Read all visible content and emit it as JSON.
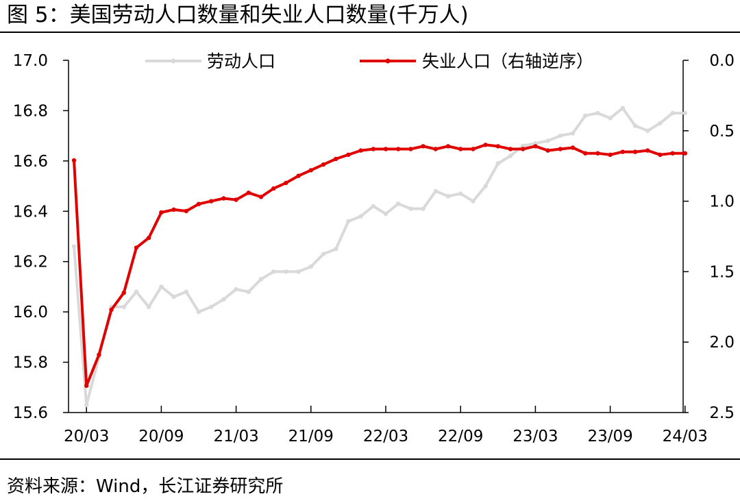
{
  "title": "图 5：美国劳动人口数量和失业人口数量(千万人)",
  "source": "资料来源：Wind，长江证券研究所",
  "colors": {
    "labor": "#d9d9d9",
    "unemployed": "#e00000",
    "rule": "#000000"
  },
  "chart_data": {
    "type": "line",
    "legend_position": "top",
    "grid": false,
    "x": [
      "20/02",
      "20/03",
      "20/04",
      "20/05",
      "20/06",
      "20/07",
      "20/08",
      "20/09",
      "20/10",
      "20/11",
      "20/12",
      "21/01",
      "21/02",
      "21/03",
      "21/04",
      "21/05",
      "21/06",
      "21/07",
      "21/08",
      "21/09",
      "21/10",
      "21/11",
      "21/12",
      "22/01",
      "22/02",
      "22/03",
      "22/04",
      "22/05",
      "22/06",
      "22/07",
      "22/08",
      "22/09",
      "22/10",
      "22/11",
      "22/12",
      "23/01",
      "23/02",
      "23/03",
      "23/04",
      "23/05",
      "23/06",
      "23/07",
      "23/08",
      "23/09",
      "23/10",
      "23/11",
      "23/12",
      "24/01",
      "24/02",
      "24/03"
    ],
    "x_tick_labels": [
      "20/03",
      "20/09",
      "21/03",
      "21/09",
      "22/03",
      "22/09",
      "23/03",
      "23/09",
      "24/03"
    ],
    "y_left": {
      "min": 15.6,
      "max": 17.0,
      "ticks": [
        "17.0",
        "16.8",
        "16.6",
        "16.4",
        "16.2",
        "16.0",
        "15.8",
        "15.6"
      ]
    },
    "y_right": {
      "min": 0.0,
      "max": 2.5,
      "inverted": true,
      "ticks": [
        "0.0",
        "0.5",
        "1.0",
        "1.5",
        "2.0",
        "2.5"
      ]
    },
    "series": [
      {
        "name": "劳动人口",
        "axis": "left",
        "values": [
          16.26,
          15.63,
          15.82,
          16.02,
          16.02,
          16.08,
          16.02,
          16.1,
          16.06,
          16.08,
          16.0,
          16.02,
          16.05,
          16.09,
          16.08,
          16.13,
          16.16,
          16.16,
          16.16,
          16.18,
          16.23,
          16.25,
          16.36,
          16.38,
          16.42,
          16.39,
          16.43,
          16.41,
          16.41,
          16.48,
          16.46,
          16.47,
          16.44,
          16.5,
          16.59,
          16.62,
          16.66,
          16.67,
          16.68,
          16.7,
          16.71,
          16.78,
          16.79,
          16.77,
          16.81,
          16.74,
          16.72,
          16.75,
          16.79,
          16.79
        ]
      },
      {
        "name": "失业人口（右轴逆序）",
        "axis": "right",
        "values": [
          0.71,
          2.31,
          2.09,
          1.77,
          1.65,
          1.33,
          1.26,
          1.08,
          1.06,
          1.07,
          1.02,
          1.0,
          0.98,
          0.99,
          0.94,
          0.97,
          0.91,
          0.87,
          0.82,
          0.78,
          0.74,
          0.7,
          0.67,
          0.64,
          0.63,
          0.63,
          0.63,
          0.63,
          0.61,
          0.63,
          0.61,
          0.63,
          0.63,
          0.6,
          0.61,
          0.63,
          0.63,
          0.61,
          0.64,
          0.63,
          0.62,
          0.66,
          0.66,
          0.67,
          0.65,
          0.65,
          0.64,
          0.67,
          0.66,
          0.66
        ]
      }
    ]
  }
}
